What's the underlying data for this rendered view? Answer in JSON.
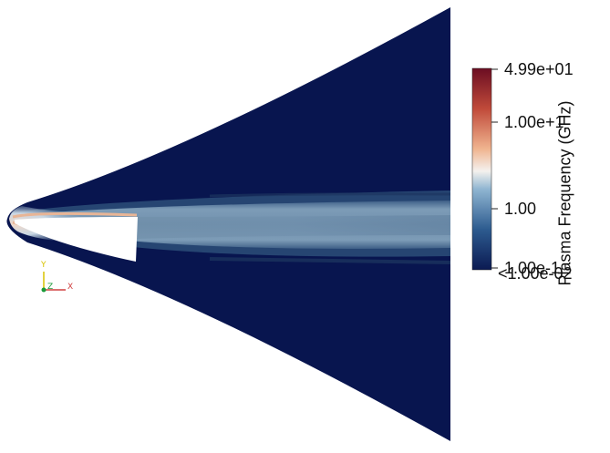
{
  "render": {
    "variable_title": "Plasma Frequency (GHz)",
    "colorbar": {
      "scale": "log",
      "min_label": "<1.00e-02",
      "max_label": "4.99e+01",
      "tick_labels": [
        "4.99e+01",
        "1.00e+1",
        "1.00",
        "1.00e-1",
        "<1.00e-02"
      ],
      "tick_values": [
        49.9,
        10,
        1,
        0.1,
        0.01
      ],
      "colors": [
        "#0b1a52",
        "#2d5b8f",
        "#8fb5d1",
        "#f4f1ee",
        "#f0b48f",
        "#c04a3a",
        "#6b0d22"
      ]
    },
    "background_color": "#08154f",
    "axes_orientation": {
      "y_label": "Y",
      "z_label": "Z",
      "x_label": "X",
      "y_color": "#d8c200",
      "z_color": "#1a9b3a",
      "x_color": "#d04040"
    }
  }
}
